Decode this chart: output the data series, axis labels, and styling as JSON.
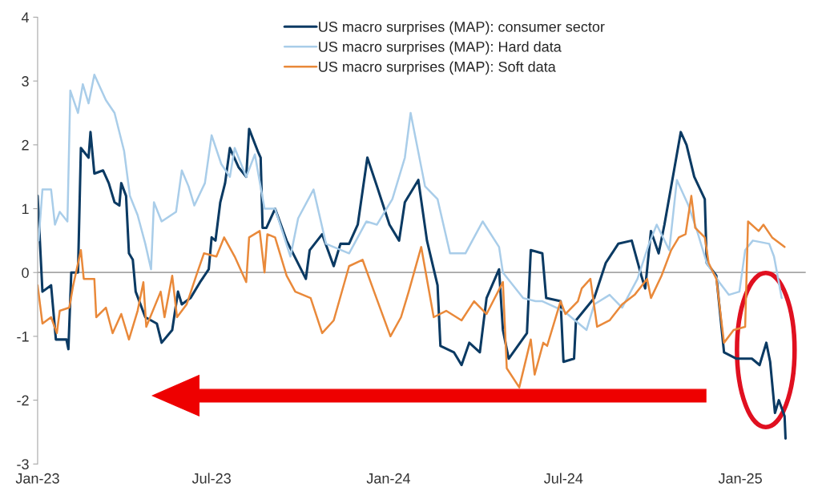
{
  "chart_data": {
    "type": "line",
    "legend": "top",
    "grid": false,
    "line_style": "solid",
    "xlim": [
      "2023-01-01",
      "2025-03-10"
    ],
    "xticks": [
      {
        "value": "2023-01-01",
        "label": "Jan-23"
      },
      {
        "value": "2023-07-01",
        "label": "Jul-23"
      },
      {
        "value": "2024-01-01",
        "label": "Jan-24"
      },
      {
        "value": "2024-07-01",
        "label": "Jul-24"
      },
      {
        "value": "2025-01-01",
        "label": "Jan-25"
      }
    ],
    "ylim": [
      -3,
      4
    ],
    "yticks": [
      -3,
      -2,
      -1,
      0,
      1,
      2,
      3,
      4
    ],
    "ref_lines": [
      {
        "axis": "y",
        "value": 0,
        "label": null,
        "color": "#a6a6a6"
      }
    ],
    "series": [
      {
        "name": "US macro surprises (MAP): consumer sector",
        "color": "#0b3a63",
        "x": [
          "2023-01-01",
          "2023-01-06",
          "2023-01-15",
          "2023-01-20",
          "2023-01-31",
          "2023-02-02",
          "2023-02-05",
          "2023-02-12",
          "2023-02-15",
          "2023-02-23",
          "2023-02-25",
          "2023-03-01",
          "2023-03-10",
          "2023-03-16",
          "2023-03-22",
          "2023-03-27",
          "2023-03-29",
          "2023-04-03",
          "2023-04-06",
          "2023-04-10",
          "2023-04-13",
          "2023-04-23",
          "2023-05-05",
          "2023-05-10",
          "2023-05-21",
          "2023-05-27",
          "2023-05-31",
          "2023-06-09",
          "2023-06-19",
          "2023-06-28",
          "2023-07-01",
          "2023-07-05",
          "2023-07-10",
          "2023-07-15",
          "2023-07-20",
          "2023-07-29",
          "2023-08-06",
          "2023-08-09",
          "2023-08-18",
          "2023-08-21",
          "2023-08-23",
          "2023-08-27",
          "2023-09-05",
          "2023-09-17",
          "2023-10-07",
          "2023-10-11",
          "2023-10-24",
          "2023-11-05",
          "2023-11-12",
          "2023-11-21",
          "2023-11-30",
          "2023-12-10",
          "2023-12-20",
          "2024-01-02",
          "2024-01-12",
          "2024-01-18",
          "2024-02-01",
          "2024-02-10",
          "2024-02-21",
          "2024-02-24",
          "2024-03-09",
          "2024-03-17",
          "2024-03-25",
          "2024-04-05",
          "2024-04-12",
          "2024-04-25",
          "2024-04-29",
          "2024-05-05",
          "2024-05-24",
          "2024-05-28",
          "2024-06-09",
          "2024-06-13",
          "2024-06-28",
          "2024-07-01",
          "2024-07-12",
          "2024-07-14",
          "2024-08-02",
          "2024-08-14",
          "2024-08-27",
          "2024-09-10",
          "2024-09-20",
          "2024-09-24",
          "2024-09-30",
          "2024-10-08",
          "2024-10-14",
          "2024-10-24",
          "2024-10-31",
          "2024-11-06",
          "2024-11-14",
          "2024-11-25",
          "2024-11-27",
          "2024-12-07",
          "2024-12-15",
          "2024-12-28",
          "2025-01-13",
          "2025-01-21",
          "2025-01-28",
          "2025-02-01",
          "2025-02-06",
          "2025-02-10",
          "2025-02-16",
          "2025-02-17"
        ],
        "values": [
          1.2,
          -0.3,
          -0.2,
          -1.05,
          -1.05,
          -1.2,
          0,
          0,
          1.95,
          1.8,
          2.2,
          1.55,
          1.6,
          1.4,
          1.1,
          1.05,
          1.4,
          1.2,
          0.3,
          0.2,
          -0.3,
          -0.7,
          -0.8,
          -1.1,
          -0.9,
          -0.3,
          -0.5,
          -0.4,
          -0.15,
          0.05,
          0.55,
          0.5,
          1.1,
          1.4,
          1.95,
          1.65,
          1.5,
          2.25,
          1.9,
          1.8,
          0.7,
          0.7,
          1.0,
          0.5,
          -0.1,
          0.35,
          0.6,
          0.1,
          0.45,
          0.45,
          0.75,
          1.8,
          1.35,
          0.75,
          0.5,
          1.1,
          1.45,
          0.5,
          -0.2,
          -1.15,
          -1.25,
          -1.45,
          -1.1,
          -1.25,
          -0.4,
          0.05,
          -0.9,
          -1.35,
          -0.95,
          0.35,
          0.3,
          -0.4,
          -0.45,
          -1.4,
          -1.35,
          -0.75,
          -0.4,
          0.15,
          0.45,
          0.5,
          -0.05,
          -0.25,
          0.65,
          0.3,
          0.75,
          1.6,
          2.2,
          2.0,
          1.5,
          1.15,
          0.15,
          -0.05,
          -1.25,
          -1.35,
          -1.35,
          -1.45,
          -1.1,
          -1.4,
          -2.2,
          -2.0,
          -2.25,
          -2.6
        ]
      },
      {
        "name": "US macro surprises (MAP): Hard data",
        "color": "#a9cde9",
        "x": [
          "2023-01-02",
          "2023-01-06",
          "2023-01-15",
          "2023-01-19",
          "2023-01-24",
          "2023-02-01",
          "2023-02-04",
          "2023-02-12",
          "2023-02-17",
          "2023-02-23",
          "2023-03-01",
          "2023-03-13",
          "2023-03-22",
          "2023-04-01",
          "2023-04-07",
          "2023-04-15",
          "2023-04-23",
          "2023-04-29",
          "2023-05-02",
          "2023-05-10",
          "2023-05-25",
          "2023-05-31",
          "2023-06-07",
          "2023-06-13",
          "2023-06-24",
          "2023-07-01",
          "2023-07-11",
          "2023-07-20",
          "2023-07-25",
          "2023-08-06",
          "2023-08-15",
          "2023-08-25",
          "2023-09-05",
          "2023-09-21",
          "2023-09-29",
          "2023-10-15",
          "2023-10-28",
          "2023-11-21",
          "2023-12-09",
          "2023-12-20",
          "2024-01-05",
          "2024-01-18",
          "2024-01-24",
          "2024-02-08",
          "2024-02-21",
          "2024-03-05",
          "2024-03-21",
          "2024-04-08",
          "2024-04-25",
          "2024-04-29",
          "2024-05-20",
          "2024-06-02",
          "2024-06-09",
          "2024-07-01",
          "2024-07-25",
          "2024-08-02",
          "2024-08-18",
          "2024-08-31",
          "2024-09-16",
          "2024-09-28",
          "2024-10-06",
          "2024-10-19",
          "2024-10-27",
          "2024-11-08",
          "2024-11-17",
          "2024-11-27",
          "2024-12-10",
          "2024-12-20",
          "2024-12-31",
          "2025-01-06",
          "2025-01-14",
          "2025-01-31",
          "2025-02-05",
          "2025-02-13"
        ],
        "values": [
          0.5,
          1.3,
          1.3,
          0.75,
          0.95,
          0.8,
          2.85,
          2.5,
          2.95,
          2.65,
          3.1,
          2.7,
          2.5,
          1.9,
          1.2,
          0.9,
          0.45,
          0.05,
          1.1,
          0.8,
          0.95,
          1.6,
          1.35,
          1.05,
          1.4,
          2.15,
          1.7,
          1.5,
          1.95,
          1.5,
          1.85,
          1.0,
          1.0,
          0.25,
          0.85,
          1.3,
          0.45,
          0.3,
          0.8,
          0.75,
          1.15,
          1.8,
          2.5,
          1.35,
          1.15,
          0.3,
          0.3,
          0.8,
          0.4,
          0,
          -0.4,
          -0.45,
          -0.45,
          -0.6,
          -0.9,
          -0.5,
          -0.35,
          -0.55,
          -0.1,
          0.45,
          0.75,
          0.35,
          1.45,
          1.05,
          0.65,
          0.15,
          -0.15,
          -0.35,
          -0.3,
          0.35,
          0.5,
          0.45,
          0.25,
          -0.4
        ]
      },
      {
        "name": "US macro surprises (MAP): Soft data",
        "color": "#e9893a",
        "x": [
          "2023-01-01",
          "2023-01-06",
          "2023-01-15",
          "2023-01-21",
          "2023-01-24",
          "2023-02-03",
          "2023-02-07",
          "2023-02-15",
          "2023-02-18",
          "2023-03-01",
          "2023-03-03",
          "2023-03-13",
          "2023-03-20",
          "2023-03-29",
          "2023-04-06",
          "2023-04-15",
          "2023-04-21",
          "2023-04-24",
          "2023-05-09",
          "2023-05-13",
          "2023-05-21",
          "2023-05-26",
          "2023-06-05",
          "2023-06-15",
          "2023-06-23",
          "2023-07-06",
          "2023-07-14",
          "2023-07-25",
          "2023-08-06",
          "2023-08-09",
          "2023-08-20",
          "2023-08-25",
          "2023-08-28",
          "2023-09-05",
          "2023-09-17",
          "2023-09-26",
          "2023-10-12",
          "2023-10-24",
          "2023-11-05",
          "2023-11-21",
          "2023-12-05",
          "2023-12-17",
          "2024-01-03",
          "2024-01-14",
          "2024-01-22",
          "2024-02-04",
          "2024-02-17",
          "2024-03-01",
          "2024-03-17",
          "2024-03-30",
          "2024-04-12",
          "2024-04-29",
          "2024-05-03",
          "2024-05-16",
          "2024-05-28",
          "2024-06-01",
          "2024-06-10",
          "2024-06-14",
          "2024-06-28",
          "2024-07-03",
          "2024-07-16",
          "2024-07-20",
          "2024-07-29",
          "2024-08-05",
          "2024-08-18",
          "2024-08-31",
          "2024-09-13",
          "2024-09-26",
          "2024-09-30",
          "2024-10-11",
          "2024-10-21",
          "2024-10-29",
          "2024-11-05",
          "2024-11-11",
          "2024-11-15",
          "2024-11-25",
          "2024-11-29",
          "2024-12-07",
          "2024-12-15",
          "2024-12-25",
          "2025-01-06",
          "2025-01-09",
          "2025-01-20",
          "2025-01-25",
          "2025-02-03",
          "2025-02-16"
        ],
        "values": [
          -0.2,
          -0.8,
          -0.7,
          -0.95,
          -0.6,
          -0.55,
          -0.2,
          0.35,
          -0.1,
          -0.1,
          -0.7,
          -0.55,
          -0.95,
          -0.65,
          -1.05,
          -0.6,
          -0.15,
          -0.85,
          -0.3,
          -0.7,
          -0.05,
          -0.7,
          -0.5,
          -0.05,
          0.3,
          0.25,
          0.55,
          0.25,
          -0.15,
          0.55,
          0.65,
          0,
          0.6,
          0.55,
          -0.05,
          -0.3,
          -0.4,
          -0.95,
          -0.75,
          0.1,
          0.2,
          -0.3,
          -1.0,
          -0.7,
          -0.3,
          0.4,
          -0.7,
          -0.6,
          -0.75,
          -0.45,
          -0.65,
          -0.15,
          -1.5,
          -1.8,
          -1.05,
          -1.6,
          -1.1,
          -1.15,
          -0.45,
          -0.65,
          -0.45,
          -0.25,
          -0.1,
          -0.85,
          -0.75,
          -0.5,
          -0.35,
          -0.1,
          -0.4,
          -0.05,
          0.35,
          0.55,
          0.6,
          1.2,
          0.7,
          0.55,
          0.15,
          -0.1,
          -1.1,
          -0.9,
          -0.85,
          0.8,
          0.65,
          0.75,
          0.55,
          0.4
        ]
      }
    ]
  }
}
